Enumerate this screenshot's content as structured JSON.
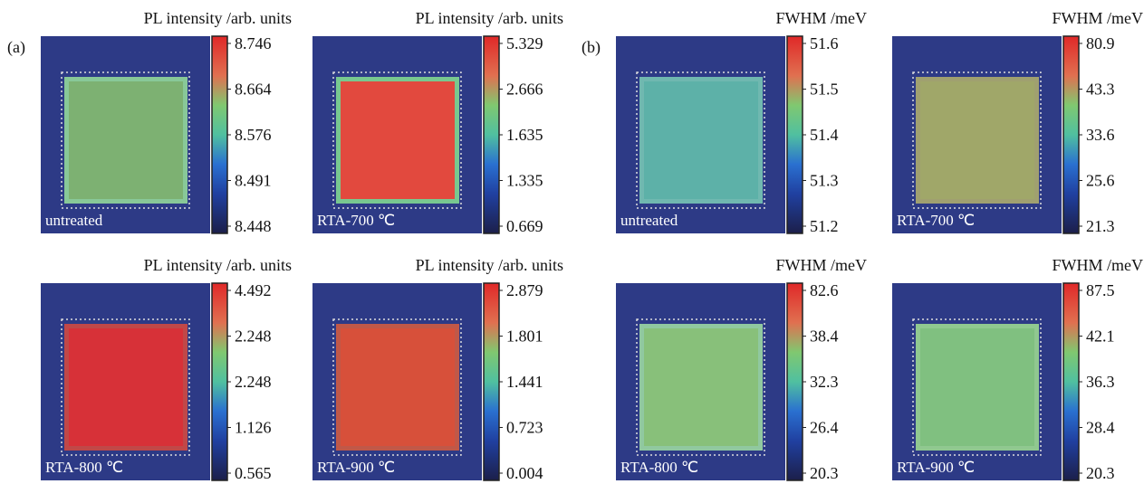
{
  "panel_labels": [
    "(a)",
    "(b)"
  ],
  "panels": [
    {
      "title": "PL intensity /arb. units",
      "sample": "untreated",
      "colorbar_labels": [
        "8.746",
        "8.664",
        "8.576",
        "8.491",
        "8.448"
      ]
    },
    {
      "title": "PL intensity /arb. units",
      "sample": "RTA-700 ℃",
      "colorbar_labels": [
        "5.329",
        "2.666",
        "1.635",
        "1.335",
        "0.669"
      ]
    },
    {
      "title": "FWHM /meV",
      "sample": "untreated",
      "colorbar_labels": [
        "51.6",
        "51.5",
        "51.4",
        "51.3",
        "51.2"
      ]
    },
    {
      "title": "FWHM /meV",
      "sample": "RTA-700 ℃",
      "colorbar_labels": [
        "80.9",
        "43.3",
        "33.6",
        "25.6",
        "21.3"
      ]
    },
    {
      "title": "PL intensity /arb. units",
      "sample": "RTA-800 ℃",
      "colorbar_labels": [
        "4.492",
        "2.248",
        "2.248",
        "1.126",
        "0.565"
      ]
    },
    {
      "title": "PL intensity /arb. units",
      "sample": "RTA-900 ℃",
      "colorbar_labels": [
        "2.879",
        "1.801",
        "1.441",
        "0.723",
        "0.004"
      ]
    },
    {
      "title": "FWHM /meV",
      "sample": "RTA-800 ℃",
      "colorbar_labels": [
        "82.6",
        "38.4",
        "32.3",
        "26.4",
        "20.3"
      ]
    },
    {
      "title": "FWHM /meV",
      "sample": "RTA-900 ℃",
      "colorbar_labels": [
        "87.5",
        "42.1",
        "36.3",
        "28.4",
        "20.3"
      ]
    }
  ]
}
